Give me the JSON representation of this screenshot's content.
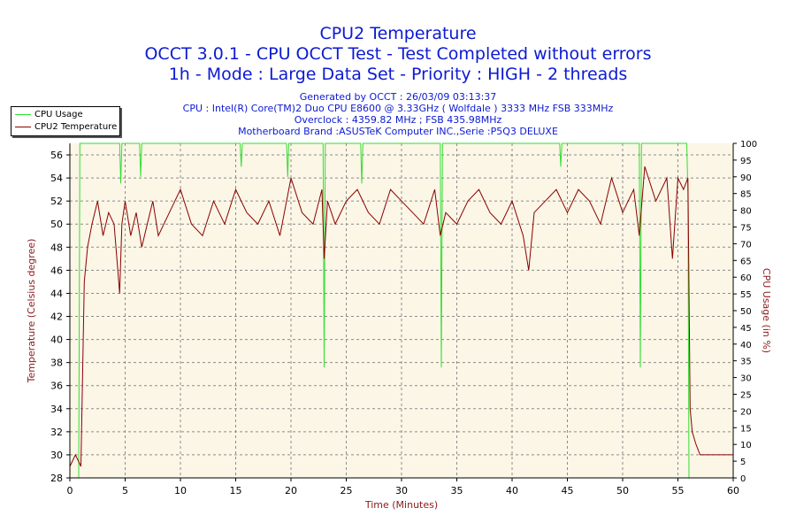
{
  "titles": {
    "line1": "CPU2 Temperature",
    "line2": "OCCT 3.0.1 - CPU OCCT Test - Test Completed without errors",
    "line3": "1h - Mode : Large Data Set - Priority : HIGH - 2 threads"
  },
  "info": {
    "generated": "Generated by OCCT : 26/03/09 03:13:37",
    "cpu": "CPU : Intel(R) Core(TM)2 Duo CPU E8600 @ 3.33GHz ( Wolfdale ) 3333 MHz FSB 333MHz",
    "overclock": "Overclock : 4359.82 MHz ; FSB 435.98MHz",
    "motherboard": "Motherboard Brand :ASUSTeK Computer INC.,Serie :P5Q3 DELUXE"
  },
  "legend": {
    "cpu_usage": "CPU Usage",
    "cpu2_temp": "CPU2 Temperature"
  },
  "colors": {
    "title": "#0c1ad2",
    "temperature_line": "#8b0000",
    "usage_line": "#33dd33",
    "axis_label": "#8b1a1a",
    "plot_bg": "#fbf6e6"
  },
  "chart_data": {
    "type": "line",
    "xlabel": "Time (Minutes)",
    "ylabel": "Temperature (Celsius degree)",
    "y2label": "CPU Usage (in %)",
    "xlim": [
      0,
      60
    ],
    "ylim": [
      28,
      57
    ],
    "y2lim": [
      0,
      100
    ],
    "x_ticks": [
      0,
      5,
      10,
      15,
      20,
      25,
      30,
      35,
      40,
      45,
      50,
      55,
      60
    ],
    "y_ticks": [
      28,
      30,
      32,
      34,
      36,
      38,
      40,
      42,
      44,
      46,
      48,
      50,
      52,
      54,
      56
    ],
    "y2_ticks": [
      0,
      5,
      10,
      15,
      20,
      25,
      30,
      35,
      40,
      45,
      50,
      55,
      60,
      65,
      70,
      75,
      80,
      85,
      90,
      95,
      100
    ],
    "grid": true,
    "legend_position": "top-left",
    "series": [
      {
        "name": "CPU Usage",
        "axis": "right",
        "x": [
          0,
          0.8,
          0.9,
          1.0,
          1.1,
          1.3,
          4.5,
          4.6,
          4.7,
          4.8,
          6.3,
          6.4,
          6.5,
          6.6,
          15.4,
          15.5,
          15.6,
          19.6,
          19.7,
          19.8,
          22.9,
          23.0,
          23.1,
          26.3,
          26.4,
          26.5,
          33.5,
          33.6,
          33.7,
          44.3,
          44.4,
          44.5,
          51.5,
          51.6,
          51.7,
          55.8,
          55.9,
          56.0,
          56.1,
          60
        ],
        "values": [
          0,
          0,
          100,
          100,
          100,
          100,
          100,
          88,
          100,
          100,
          100,
          90,
          100,
          100,
          100,
          93,
          100,
          100,
          90,
          100,
          100,
          33,
          100,
          100,
          88,
          100,
          100,
          33,
          100,
          100,
          93,
          100,
          100,
          33,
          100,
          100,
          85,
          0,
          0,
          0
        ]
      },
      {
        "name": "CPU2 Temperature",
        "axis": "left",
        "x": [
          0,
          0.5,
          1.0,
          1.3,
          1.6,
          2.0,
          2.5,
          3.0,
          3.5,
          4.0,
          4.5,
          4.7,
          5.0,
          5.5,
          6.0,
          6.5,
          7.0,
          7.5,
          8.0,
          9.0,
          10.0,
          11.0,
          12.0,
          13.0,
          14.0,
          15.0,
          16.0,
          17.0,
          18.0,
          19.0,
          20.0,
          21.0,
          22.0,
          22.8,
          23.0,
          23.3,
          24.0,
          25.0,
          26.0,
          27.0,
          28.0,
          29.0,
          30.0,
          31.0,
          32.0,
          33.0,
          33.5,
          34.0,
          35.0,
          36.0,
          37.0,
          38.0,
          39.0,
          40.0,
          41.0,
          41.5,
          42.0,
          43.0,
          44.0,
          45.0,
          46.0,
          47.0,
          48.0,
          49.0,
          50.0,
          51.0,
          51.5,
          52.0,
          53.0,
          54.0,
          54.5,
          55.0,
          55.5,
          55.9,
          56.1,
          56.3,
          56.6,
          57.0,
          57.5,
          58.0,
          59.0,
          59.5,
          60
        ],
        "values": [
          29,
          30,
          29,
          45,
          48,
          50,
          52,
          49,
          51,
          50,
          44,
          50,
          52,
          49,
          51,
          48,
          50,
          52,
          49,
          51,
          53,
          50,
          49,
          52,
          50,
          53,
          51,
          50,
          52,
          49,
          54,
          51,
          50,
          53,
          47,
          52,
          50,
          52,
          53,
          51,
          50,
          53,
          52,
          51,
          50,
          53,
          49,
          51,
          50,
          52,
          53,
          51,
          50,
          52,
          49,
          46,
          51,
          52,
          53,
          51,
          53,
          52,
          50,
          54,
          51,
          53,
          49,
          55,
          52,
          54,
          47,
          54,
          53,
          54,
          34,
          32,
          31,
          30,
          30,
          30,
          30,
          30,
          30
        ]
      }
    ]
  }
}
